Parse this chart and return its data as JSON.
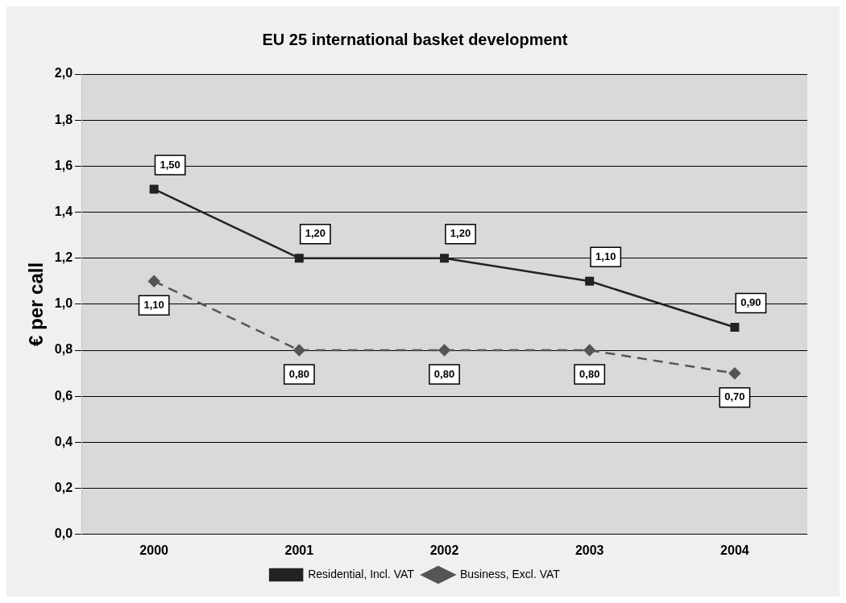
{
  "chart_data": {
    "type": "line",
    "title": "EU 25 international basket development",
    "ylabel": "€ per call",
    "categories": [
      "2000",
      "2001",
      "2002",
      "2003",
      "2004"
    ],
    "series": [
      {
        "name": "Residential, Incl. VAT",
        "color": "#222222",
        "values": [
          1.5,
          1.2,
          1.2,
          1.1,
          0.9
        ],
        "value_labels": [
          "1,50",
          "1,20",
          "1,20",
          "1,10",
          "0,90"
        ],
        "marker": "square",
        "line_style": "solid"
      },
      {
        "name": "Business, Excl. VAT",
        "color": "#555555",
        "values": [
          1.1,
          0.8,
          0.8,
          0.8,
          0.7
        ],
        "value_labels": [
          "1,10",
          "0,80",
          "0,80",
          "0,80",
          "0,70"
        ],
        "marker": "diamond",
        "line_style": "dashed"
      }
    ],
    "ylim": [
      0,
      2
    ],
    "yticks": [
      {
        "value": 0,
        "label": "0,0"
      },
      {
        "value": 0.2,
        "label": "0,2"
      },
      {
        "value": 0.4,
        "label": "0,4"
      },
      {
        "value": 0.6,
        "label": "0,6"
      },
      {
        "value": 0.8,
        "label": "0,8"
      },
      {
        "value": 1,
        "label": "1,0"
      },
      {
        "value": 1.2,
        "label": "1,2"
      },
      {
        "value": 1.4,
        "label": "1,4"
      },
      {
        "value": 1.6,
        "label": "1,6"
      },
      {
        "value": 1.8,
        "label": "1,8"
      },
      {
        "value": 2,
        "label": "2,0"
      }
    ],
    "grid": "y",
    "legend": "bottom"
  }
}
